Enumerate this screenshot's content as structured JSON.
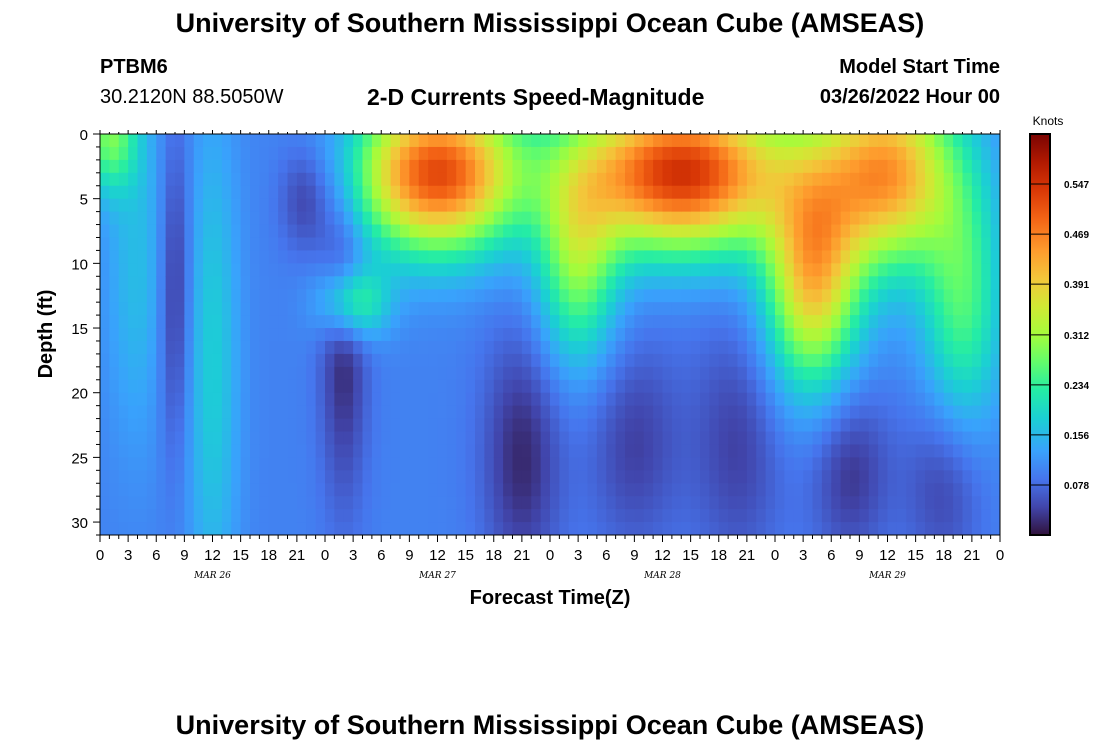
{
  "chart_data": {
    "type": "heatmap",
    "title": "University of Southern Mississippi Ocean Cube (AMSEAS)",
    "station": "PTBM6",
    "location": "30.2120N  88.5050W",
    "subtitle": "2-D Currents Speed-Magnitude",
    "model_start_label": "Model Start Time",
    "model_start_value": "03/26/2022 Hour 00",
    "xlabel": "Forecast Time(Z)",
    "ylabel": "Depth (ft)",
    "xlim": [
      0,
      96
    ],
    "ylim": [
      0,
      31
    ],
    "x_tick_labels": [
      "0",
      "3",
      "6",
      "9",
      "12",
      "15",
      "18",
      "21",
      "0",
      "3",
      "6",
      "9",
      "12",
      "15",
      "18",
      "21",
      "0",
      "3",
      "6",
      "9",
      "12",
      "15",
      "18",
      "21",
      "0",
      "3",
      "6",
      "9",
      "12",
      "15",
      "18",
      "21",
      "0"
    ],
    "y_tick_labels": [
      "0",
      "5",
      "10",
      "15",
      "20",
      "25",
      "30"
    ],
    "date_labels": [
      "MAR 26",
      "MAR 27",
      "MAR 28",
      "MAR 29"
    ],
    "colorbar": {
      "unit": "Knots",
      "labels": [
        "0.547",
        "0.469",
        "0.391",
        "0.312",
        "0.234",
        "0.156",
        "0.078"
      ],
      "range": [
        0,
        0.625
      ]
    },
    "grid": false
  },
  "footer_title": "University of Southern Mississippi Ocean Cube (AMSEAS)"
}
